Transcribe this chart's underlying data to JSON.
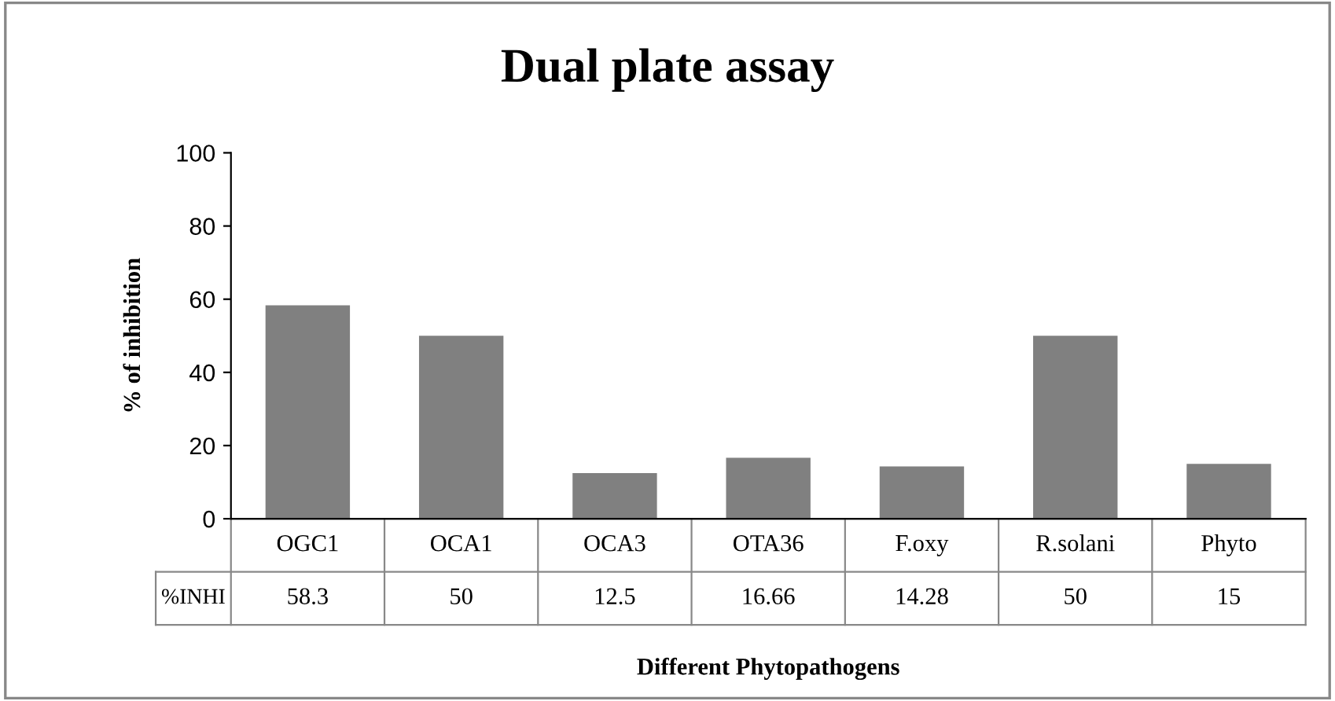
{
  "chart_data": {
    "type": "bar",
    "title": "Dual plate assay",
    "xlabel": "Different Phytopathogens",
    "ylabel": "% of inhibition",
    "categories": [
      "OGC1",
      "OCA1",
      "OCA3",
      "OTA36",
      "F.oxy",
      "R.solani",
      "Phyto"
    ],
    "series": [
      {
        "name": "%INHI",
        "color": "#808080",
        "values": [
          58.3,
          50,
          12.5,
          16.66,
          14.28,
          50,
          15
        ]
      }
    ],
    "ylim": [
      0,
      100
    ],
    "yticks": [
      0,
      20,
      40,
      60,
      80,
      100
    ],
    "grid": false,
    "data_labels": true
  }
}
